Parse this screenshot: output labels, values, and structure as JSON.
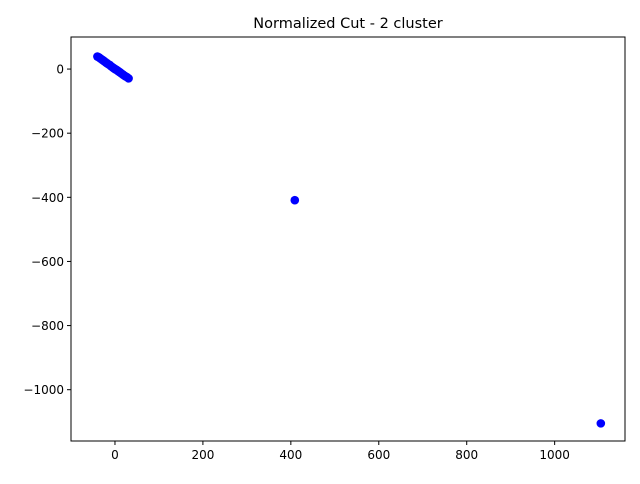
{
  "chart_data": {
    "type": "scatter",
    "title": "Normalized Cut - 2 cluster",
    "xlabel": "",
    "ylabel": "",
    "xlim": [
      -100,
      1160
    ],
    "ylim": [
      -1160,
      100
    ],
    "x_ticks": [
      {
        "value": 0,
        "label": "0"
      },
      {
        "value": 200,
        "label": "200"
      },
      {
        "value": 400,
        "label": "400"
      },
      {
        "value": 600,
        "label": "600"
      },
      {
        "value": 800,
        "label": "800"
      },
      {
        "value": 1000,
        "label": "1000"
      }
    ],
    "y_ticks": [
      {
        "value": 0,
        "label": "0"
      },
      {
        "value": -200,
        "label": "−200"
      },
      {
        "value": -400,
        "label": "−400"
      },
      {
        "value": -600,
        "label": "−600"
      },
      {
        "value": -800,
        "label": "−800"
      },
      {
        "value": -1000,
        "label": "−1000"
      }
    ],
    "grid": false,
    "marker_color": "#0000ff",
    "series": [
      {
        "points": [
          {
            "x": -40,
            "y": 39
          },
          {
            "x": -37,
            "y": 37
          },
          {
            "x": -34,
            "y": 34
          },
          {
            "x": -31,
            "y": 31
          },
          {
            "x": -28,
            "y": 28
          },
          {
            "x": -26,
            "y": 26
          },
          {
            "x": -23,
            "y": 23
          },
          {
            "x": -20,
            "y": 20
          },
          {
            "x": -18,
            "y": 18
          },
          {
            "x": -15,
            "y": 15
          },
          {
            "x": -12,
            "y": 13
          },
          {
            "x": -10,
            "y": 10
          },
          {
            "x": -8,
            "y": 8
          },
          {
            "x": -6,
            "y": 6
          },
          {
            "x": -4,
            "y": 4
          },
          {
            "x": -2,
            "y": 2
          },
          {
            "x": 0,
            "y": 0
          },
          {
            "x": 2,
            "y": -1
          },
          {
            "x": 4,
            "y": -3
          },
          {
            "x": 6,
            "y": -5
          },
          {
            "x": 8,
            "y": -7
          },
          {
            "x": 10,
            "y": -9
          },
          {
            "x": 12,
            "y": -11
          },
          {
            "x": 14,
            "y": -13
          },
          {
            "x": 17,
            "y": -16
          },
          {
            "x": 20,
            "y": -19
          },
          {
            "x": 23,
            "y": -22
          },
          {
            "x": 27,
            "y": -25
          },
          {
            "x": 31,
            "y": -29
          },
          {
            "x": 409,
            "y": -409
          },
          {
            "x": 1105,
            "y": -1105
          }
        ]
      }
    ]
  }
}
